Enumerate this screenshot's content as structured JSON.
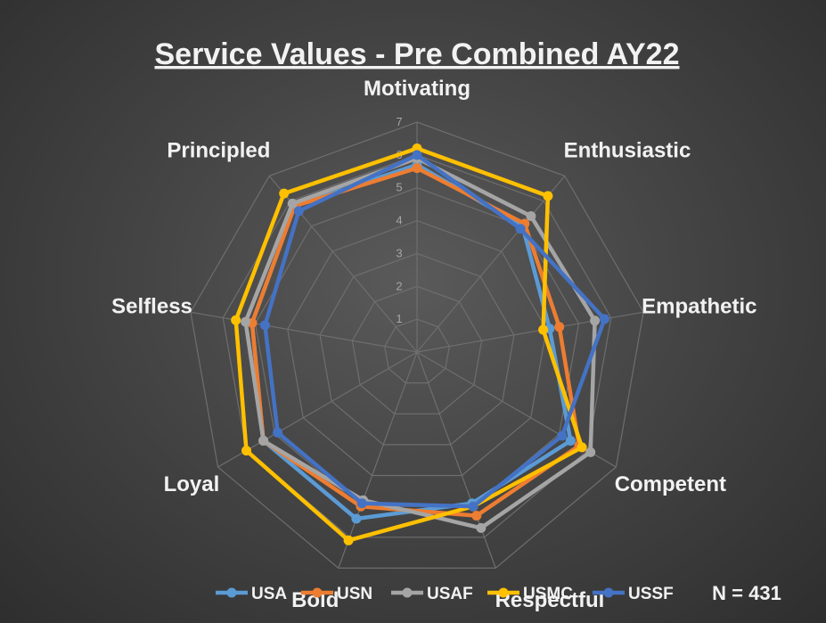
{
  "chart_data": {
    "type": "radar",
    "title": "Service Values - Pre Combined AY22",
    "axes": [
      "Motivating",
      "Enthusiastic",
      "Empathetic",
      "Competent",
      "Respectful",
      "Bold",
      "Loyal",
      "Selfless",
      "Principled"
    ],
    "rlim": [
      0,
      7
    ],
    "ticks": [
      "1",
      "2",
      "3",
      "4",
      "5",
      "6",
      "7"
    ],
    "grid": true,
    "legend_position": "bottom",
    "annotation": "N = 431",
    "series": [
      {
        "name": "USA",
        "color": "#5b9bd5",
        "values": [
          5.7,
          5.0,
          4.1,
          5.4,
          4.9,
          5.4,
          5.4,
          5.1,
          5.8
        ]
      },
      {
        "name": "USN",
        "color": "#ed7d31",
        "values": [
          5.6,
          5.1,
          4.4,
          5.7,
          5.3,
          5.0,
          5.4,
          5.1,
          5.8
        ]
      },
      {
        "name": "USAF",
        "color": "#a5a5a5",
        "values": [
          5.9,
          5.4,
          5.5,
          6.1,
          5.7,
          4.8,
          5.4,
          5.3,
          5.9
        ]
      },
      {
        "name": "USMC",
        "color": "#ffc000",
        "values": [
          6.2,
          6.2,
          3.9,
          5.8,
          5.0,
          6.1,
          6.0,
          5.6,
          6.3
        ]
      },
      {
        "name": "USSF",
        "color": "#4472c4",
        "values": [
          6.0,
          4.9,
          5.8,
          5.1,
          5.0,
          4.9,
          4.9,
          4.7,
          5.6
        ]
      }
    ]
  }
}
